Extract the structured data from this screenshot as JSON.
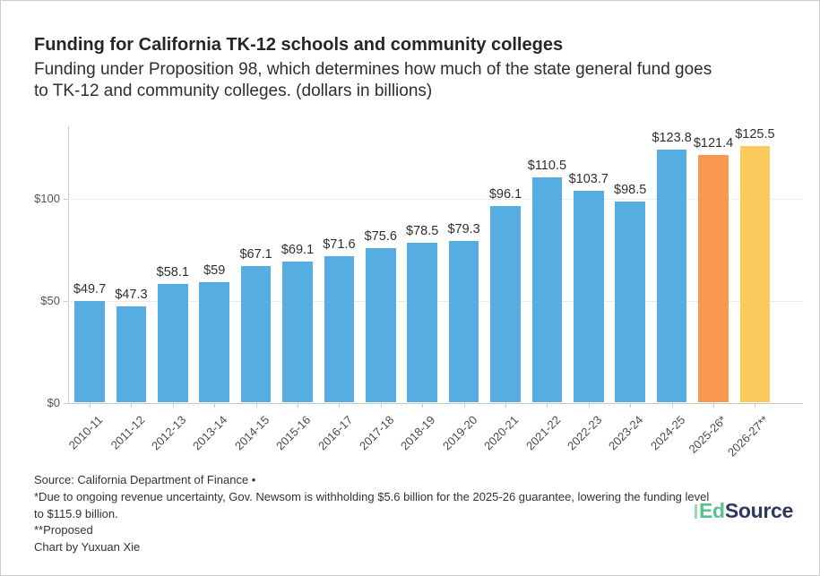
{
  "header": {
    "title": "Funding for California TK-12 schools and community colleges",
    "subtitle_lines": [
      "Funding under Proposition 98, which determines how much of the state general fund goes",
      "to TK-12 and community colleges. (dollars in billions)"
    ]
  },
  "chart_data": {
    "type": "bar",
    "title": "Funding for California TK-12 schools and community colleges",
    "subtitle": "Funding under Proposition 98, which determines how much of the state general fund goes to TK-12 and community colleges. (dollars in billions)",
    "xlabel": "",
    "ylabel": "dollars in billions",
    "ylim": [
      0,
      134
    ],
    "grid": "horizontal",
    "y_ticks": [
      {
        "value": 0,
        "label": "$0"
      },
      {
        "value": 50,
        "label": "$50"
      },
      {
        "value": 100,
        "label": "$100"
      }
    ],
    "bars": [
      {
        "year": "2010-11",
        "value": 49.7,
        "label": "$49.7",
        "color": "#55ADE2"
      },
      {
        "year": "2011-12",
        "value": 47.3,
        "label": "$47.3",
        "color": "#55ADE2"
      },
      {
        "year": "2012-13",
        "value": 58.1,
        "label": "$58.1",
        "color": "#55ADE2"
      },
      {
        "year": "2013-14",
        "value": 59,
        "label": "$59",
        "color": "#55ADE2"
      },
      {
        "year": "2014-15",
        "value": 67.1,
        "label": "$67.1",
        "color": "#55ADE2"
      },
      {
        "year": "2015-16",
        "value": 69.1,
        "label": "$69.1",
        "color": "#55ADE2"
      },
      {
        "year": "2016-17",
        "value": 71.6,
        "label": "$71.6",
        "color": "#55ADE2"
      },
      {
        "year": "2017-18",
        "value": 75.6,
        "label": "$75.6",
        "color": "#55ADE2"
      },
      {
        "year": "2018-19",
        "value": 78.5,
        "label": "$78.5",
        "color": "#55ADE2"
      },
      {
        "year": "2019-20",
        "value": 79.3,
        "label": "$79.3",
        "color": "#55ADE2"
      },
      {
        "year": "2020-21",
        "value": 96.1,
        "label": "$96.1",
        "color": "#55ADE2"
      },
      {
        "year": "2021-22",
        "value": 110.5,
        "label": "$110.5",
        "color": "#55ADE2"
      },
      {
        "year": "2022-23",
        "value": 103.7,
        "label": "$103.7",
        "color": "#55ADE2"
      },
      {
        "year": "2023-24",
        "value": 98.5,
        "label": "$98.5",
        "color": "#55ADE2"
      },
      {
        "year": "2024-25",
        "value": 123.8,
        "label": "$123.8",
        "color": "#55ADE2"
      },
      {
        "year": "2025-26*",
        "value": 121.4,
        "label": "$121.4",
        "color": "#F8994F"
      },
      {
        "year": "2026-27**",
        "value": 125.5,
        "label": "$125.5",
        "color": "#FBCB5E"
      }
    ],
    "colors": {
      "default_bar": "#55ADE2",
      "withholding_bar": "#F8994F",
      "proposed_bar": "#FBCB5E"
    },
    "legend": "none"
  },
  "footer": {
    "lines": [
      "Source: California Department of Finance •",
      "*Due to ongoing revenue uncertainty, Gov. Newsom is withholding $5.6 billion for the 2025-26 guarantee, lowering the funding level to $115.9 billion.",
      "**Proposed",
      "Chart by Yuxuan Xie"
    ]
  },
  "logo": {
    "part1": "Ed",
    "part2": "Source",
    "green": "#57C28E",
    "light_green": "#9AD8B8",
    "navy": "#2D3A5F"
  }
}
